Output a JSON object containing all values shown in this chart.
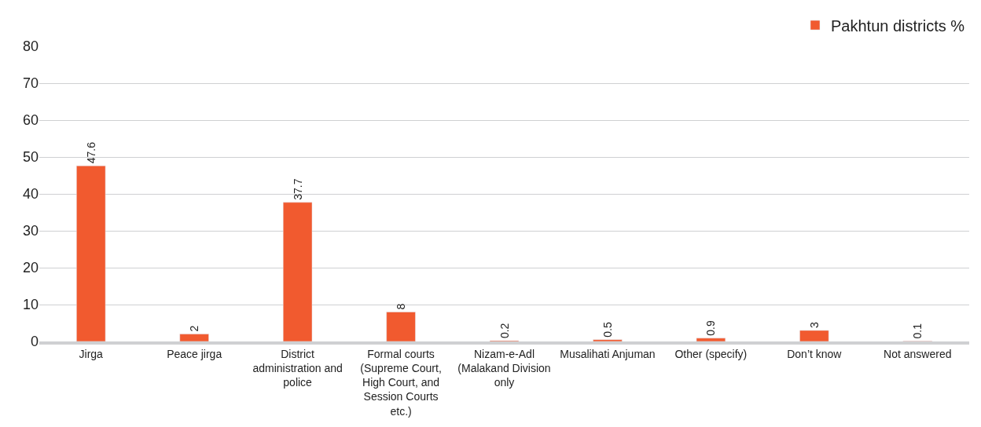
{
  "chart_data": {
    "type": "bar",
    "categories": [
      "Jirga",
      "Peace jirga",
      "District administration and police",
      "Formal courts (Supreme Court, High Court, and Session Courts etc.)",
      "Nizam-e-Adl (Malakand Division only",
      "Musalihati Anjuman",
      "Other (specify)",
      "Don’t know",
      "Not answered"
    ],
    "series": [
      {
        "name": "Pakhtun districts %",
        "color": "#f15a2f",
        "values": [
          47.6,
          2,
          37.7,
          8,
          0.2,
          0.5,
          0.9,
          3,
          0.1
        ]
      }
    ],
    "ylim": [
      0,
      80
    ],
    "yticks": [
      0,
      10,
      20,
      30,
      40,
      50,
      60,
      70,
      80
    ],
    "grid": "y",
    "legend": "top right",
    "data_labels": true
  }
}
